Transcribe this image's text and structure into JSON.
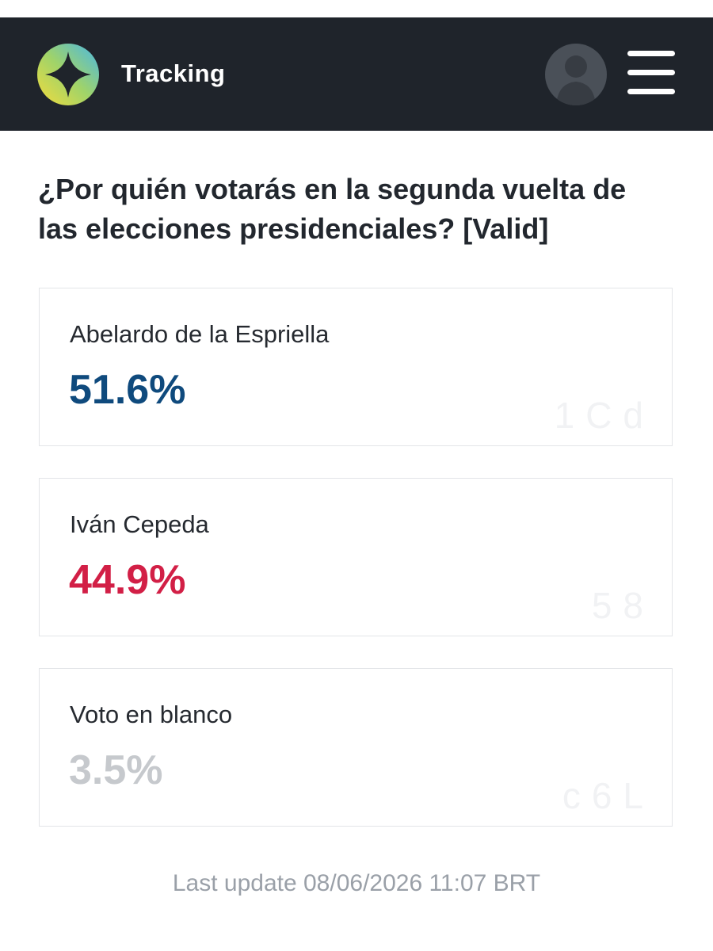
{
  "header": {
    "brand": "Tracking",
    "logo_icon": "compass-logo-icon",
    "avatar_icon": "user-avatar-icon",
    "menu_icon": "hamburger-menu-icon",
    "background_color": "#1f242b"
  },
  "question": "¿Por quién votarás en la segunda vuelta de las elecciones presidenciales? [Valid]",
  "results": [
    {
      "name": "Abelardo de la Espriella",
      "percent": "51.6%",
      "color": "#0f4a7d"
    },
    {
      "name": "Iván Cepeda",
      "percent": "44.9%",
      "color": "#d21f46"
    },
    {
      "name": "Voto en blanco",
      "percent": "3.5%",
      "color": "#c6c9cd"
    }
  ],
  "footer": {
    "last_update": "Last update 08/06/2026 11:07 BRT"
  }
}
